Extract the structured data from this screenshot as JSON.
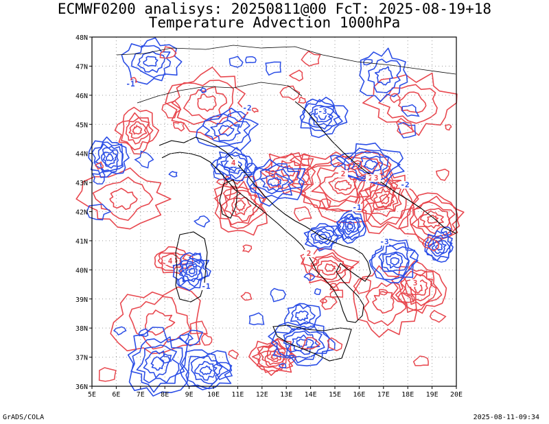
{
  "header": {
    "line1": "ECMWF0200 analisys: 20250811@00 FcT: 2025-08-19+18",
    "line2": "Temperature Advection 1000hPa"
  },
  "map": {
    "lon_range": [
      5,
      20
    ],
    "lat_range": [
      36,
      48
    ],
    "lon_labels": [
      "5E",
      "6E",
      "7E",
      "8E",
      "9E",
      "10E",
      "11E",
      "12E",
      "13E",
      "14E",
      "15E",
      "16E",
      "17E",
      "18E",
      "19E",
      "20E"
    ],
    "lat_labels": [
      "36N",
      "37N",
      "38N",
      "39N",
      "40N",
      "41N",
      "42N",
      "43N",
      "44N",
      "45N",
      "46N",
      "47N",
      "48N"
    ],
    "grid": "dotted",
    "colors": {
      "positive_contours": "#e8474e",
      "negative_contours": "#2a4de6",
      "coastline": "#000000",
      "grid": "#9a9a9a"
    },
    "contour_labels": [
      "-1",
      "-2",
      "-3",
      "2",
      "3",
      "4",
      "-1",
      "2",
      "-2",
      "3",
      "4",
      "-1",
      "-3",
      "2"
    ]
  },
  "footer": {
    "left": "GrADS/COLA",
    "right": "2025-08-11-09:34"
  }
}
